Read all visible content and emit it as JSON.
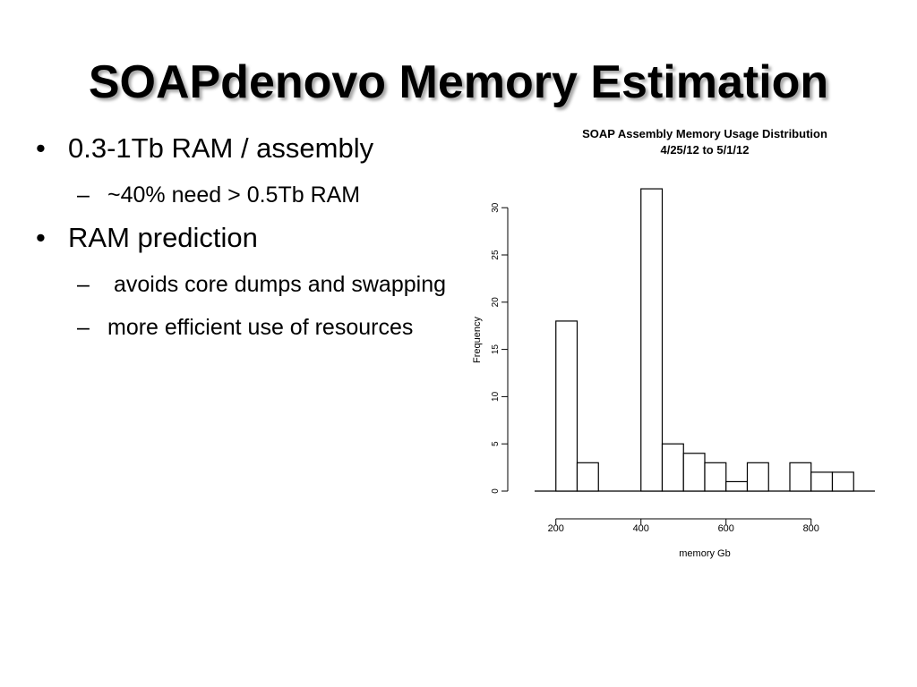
{
  "slide": {
    "title": "SOAPdenovo Memory Estimation",
    "bullets": [
      {
        "text": "0.3-1Tb RAM / assembly",
        "sub": [
          "~40% need > 0.5Tb RAM"
        ]
      },
      {
        "text": "RAM prediction",
        "sub": [
          " avoids core dumps and swapping",
          "more efficient use of resources"
        ]
      }
    ]
  },
  "chart_data": {
    "type": "bar",
    "title": "SOAP Assembly Memory Usage Distribution",
    "subtitle": "4/25/12 to 5/1/12",
    "xlabel": "memory Gb",
    "ylabel": "Frequency",
    "bin_width": 50,
    "bins": [
      {
        "x0": 150,
        "x1": 200,
        "value": 0
      },
      {
        "x0": 200,
        "x1": 250,
        "value": 18
      },
      {
        "x0": 250,
        "x1": 300,
        "value": 3
      },
      {
        "x0": 300,
        "x1": 350,
        "value": 0
      },
      {
        "x0": 350,
        "x1": 400,
        "value": 0
      },
      {
        "x0": 400,
        "x1": 450,
        "value": 32
      },
      {
        "x0": 450,
        "x1": 500,
        "value": 5
      },
      {
        "x0": 500,
        "x1": 550,
        "value": 4
      },
      {
        "x0": 550,
        "x1": 600,
        "value": 3
      },
      {
        "x0": 600,
        "x1": 650,
        "value": 1
      },
      {
        "x0": 650,
        "x1": 700,
        "value": 3
      },
      {
        "x0": 700,
        "x1": 750,
        "value": 0
      },
      {
        "x0": 750,
        "x1": 800,
        "value": 3
      },
      {
        "x0": 800,
        "x1": 850,
        "value": 2
      },
      {
        "x0": 850,
        "x1": 900,
        "value": 2
      },
      {
        "x0": 900,
        "x1": 950,
        "value": 0
      }
    ],
    "xticks": [
      200,
      400,
      600,
      800
    ],
    "yticks": [
      0,
      5,
      10,
      15,
      20,
      25,
      30
    ],
    "xlim": [
      150,
      950
    ],
    "ylim": [
      0,
      32
    ],
    "grid": false
  }
}
